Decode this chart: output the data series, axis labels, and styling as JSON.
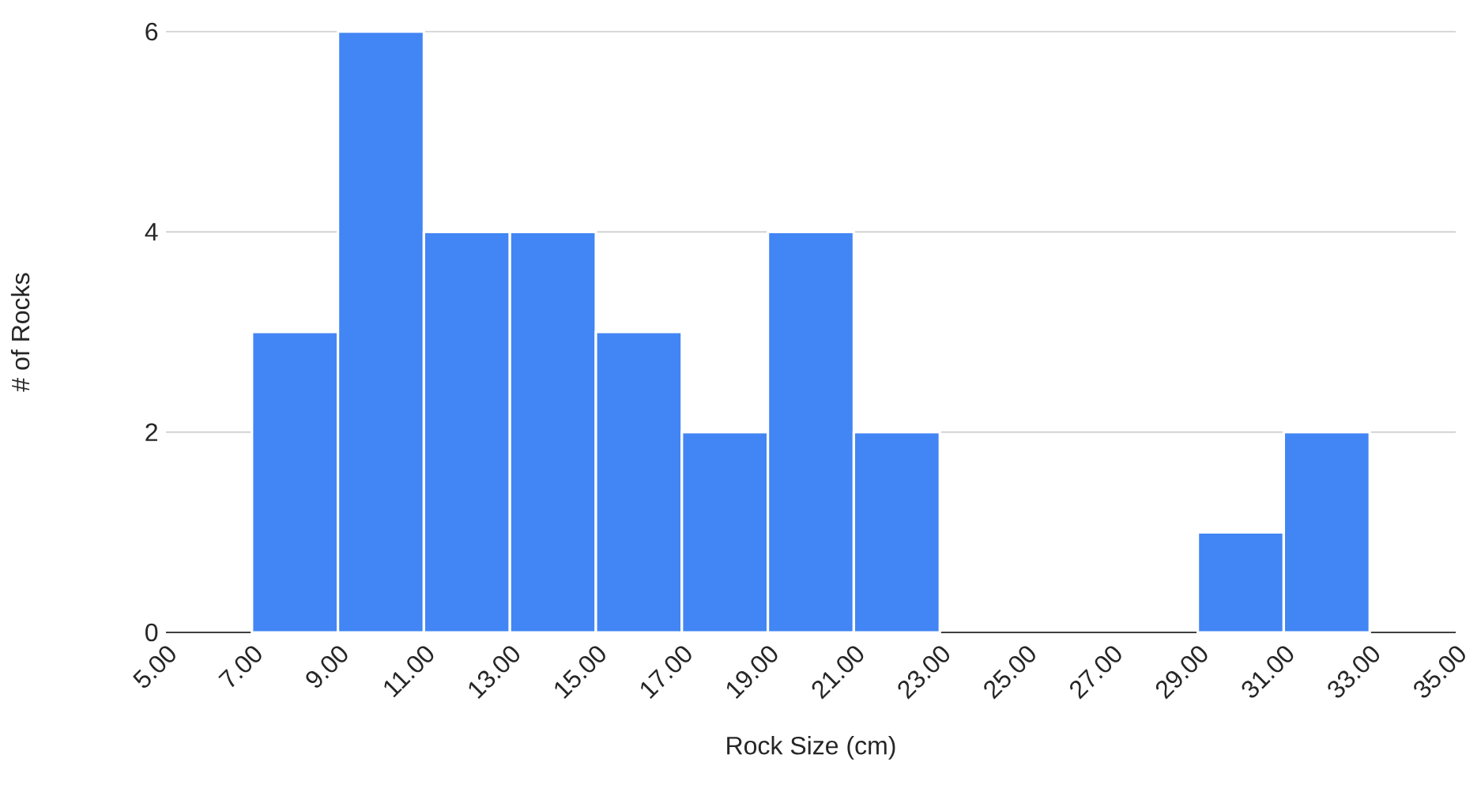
{
  "chart_data": {
    "type": "histogram",
    "xlabel": "Rock Size (cm)",
    "ylabel": "# of Rocks",
    "bins": [
      5,
      7,
      9,
      11,
      13,
      15,
      17,
      19,
      21,
      23,
      25,
      27,
      29,
      31,
      33,
      35
    ],
    "values": [
      0,
      3,
      6,
      4,
      4,
      3,
      2,
      4,
      2,
      0,
      0,
      0,
      1,
      2,
      0
    ],
    "color": "#4285f4",
    "xlim": [
      5,
      35
    ],
    "xticks": [
      {
        "value": 5,
        "label": "5.00"
      },
      {
        "value": 7,
        "label": "7.00"
      },
      {
        "value": 9,
        "label": "9.00"
      },
      {
        "value": 11,
        "label": "11.00"
      },
      {
        "value": 13,
        "label": "13.00"
      },
      {
        "value": 15,
        "label": "15.00"
      },
      {
        "value": 17,
        "label": "17.00"
      },
      {
        "value": 19,
        "label": "19.00"
      },
      {
        "value": 21,
        "label": "21.00"
      },
      {
        "value": 23,
        "label": "23.00"
      },
      {
        "value": 25,
        "label": "25.00"
      },
      {
        "value": 27,
        "label": "27.00"
      },
      {
        "value": 29,
        "label": "29.00"
      },
      {
        "value": 31,
        "label": "31.00"
      },
      {
        "value": 33,
        "label": "33.00"
      },
      {
        "value": 35,
        "label": "35.00"
      }
    ],
    "ylim": [
      0,
      6
    ],
    "yticks": [
      0,
      2,
      4,
      6
    ],
    "grid": "y"
  }
}
